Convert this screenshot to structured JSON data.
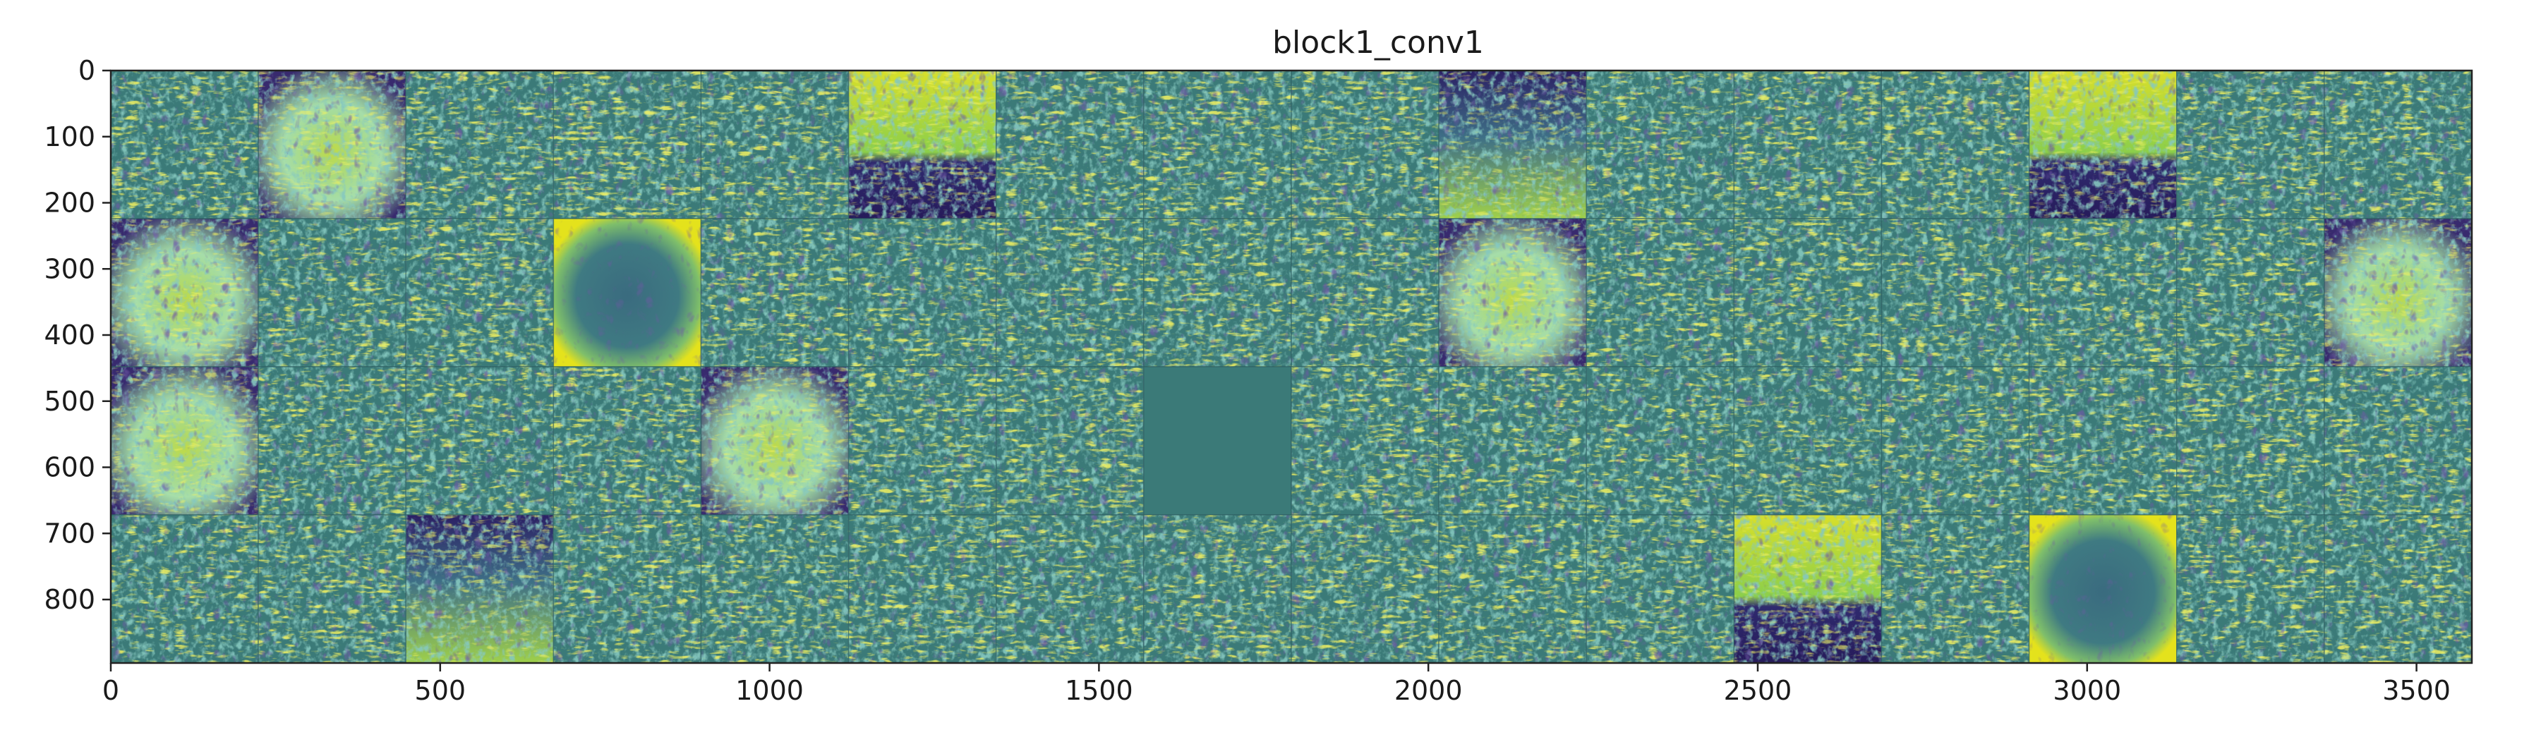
{
  "chart_data": {
    "type": "heatmap",
    "title": "block1_conv1",
    "xlabel": "",
    "ylabel": "",
    "xlim": [
      0,
      3584
    ],
    "ylim": [
      896,
      0
    ],
    "x_ticks": [
      0,
      500,
      1000,
      1500,
      2000,
      2500,
      3000,
      3500
    ],
    "y_ticks": [
      0,
      100,
      200,
      300,
      400,
      500,
      600,
      700,
      800
    ],
    "grid": false,
    "colormap": "viridis",
    "colors": {
      "low": "#2b1960",
      "mid": "#3b7a78",
      "high": "#e7e419"
    },
    "tiles": {
      "rows": 4,
      "cols": 16,
      "tile_size": 224,
      "modes": [
        [
          "n",
          "b",
          "n",
          "n",
          "n",
          "v",
          "n",
          "n",
          "n",
          "d",
          "n",
          "n",
          "n",
          "v",
          "n",
          "n"
        ],
        [
          "b",
          "n",
          "n",
          "c",
          "n",
          "n",
          "n",
          "n",
          "n",
          "b",
          "n",
          "n",
          "n",
          "n",
          "n",
          "b"
        ],
        [
          "b",
          "n",
          "n",
          "n",
          "b",
          "n",
          "n",
          "f",
          "n",
          "n",
          "n",
          "n",
          "n",
          "n",
          "n",
          "n"
        ],
        [
          "n",
          "n",
          "d",
          "n",
          "n",
          "n",
          "n",
          "n",
          "n",
          "n",
          "n",
          "v",
          "n",
          "c",
          "n",
          "n"
        ]
      ]
    }
  }
}
